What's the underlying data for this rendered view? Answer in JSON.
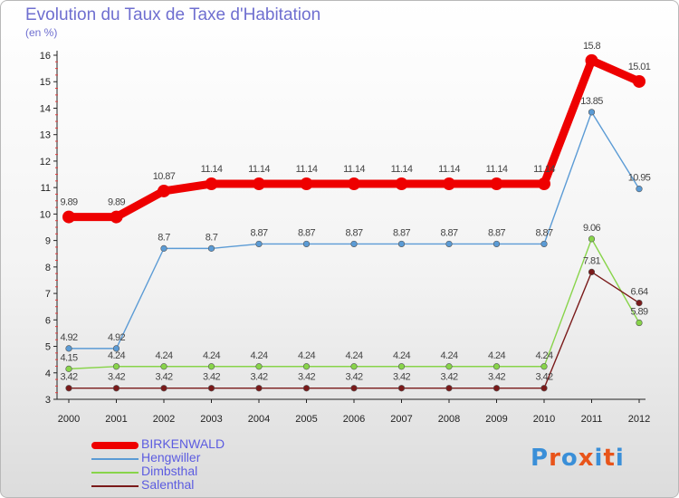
{
  "chart_data": {
    "type": "line",
    "title": "Evolution du Taux de Taxe d'Habitation",
    "subtitle": "(en %)",
    "xlabel": "",
    "ylabel": "",
    "ylim": [
      3,
      16
    ],
    "yticks": [
      "3",
      "4",
      "5",
      "6",
      "7",
      "8",
      "9",
      "10",
      "11",
      "12",
      "13",
      "14",
      "15",
      "16"
    ],
    "categories": [
      "2000",
      "2001",
      "2002",
      "2003",
      "2004",
      "2005",
      "2006",
      "2007",
      "2008",
      "2009",
      "2010",
      "2011",
      "2012"
    ],
    "series": [
      {
        "name": "BIRKENWALD",
        "color": "#ee0000",
        "emphasis": true,
        "values": [
          9.89,
          9.89,
          10.87,
          11.14,
          11.14,
          11.14,
          11.14,
          11.14,
          11.14,
          11.14,
          11.14,
          15.8,
          15.01
        ],
        "labels": [
          "9.89",
          "9.89",
          "10.87",
          "11.14",
          "11.14",
          "11.14",
          "11.14",
          "11.14",
          "11.14",
          "11.14",
          "11.14",
          "15.8",
          "15.01"
        ]
      },
      {
        "name": "Hengwiller",
        "color": "#5b9bd5",
        "emphasis": false,
        "values": [
          4.92,
          4.92,
          8.7,
          8.7,
          8.87,
          8.87,
          8.87,
          8.87,
          8.87,
          8.87,
          8.87,
          13.85,
          10.95
        ],
        "labels": [
          "4.92",
          "4.92",
          "8.7",
          "8.7",
          "8.87",
          "8.87",
          "8.87",
          "8.87",
          "8.87",
          "8.87",
          "8.87",
          "13.85",
          "10.95"
        ]
      },
      {
        "name": "Dimbsthal",
        "color": "#88d44a",
        "emphasis": false,
        "values": [
          4.15,
          4.24,
          4.24,
          4.24,
          4.24,
          4.24,
          4.24,
          4.24,
          4.24,
          4.24,
          4.24,
          9.06,
          5.89
        ],
        "labels": [
          "4.15",
          "4.24",
          "4.24",
          "4.24",
          "4.24",
          "4.24",
          "4.24",
          "4.24",
          "4.24",
          "4.24",
          "4.24",
          "9.06",
          "5.89"
        ]
      },
      {
        "name": "Salenthal",
        "color": "#7a1a1a",
        "emphasis": false,
        "values": [
          3.42,
          3.42,
          3.42,
          3.42,
          3.42,
          3.42,
          3.42,
          3.42,
          3.42,
          3.42,
          3.42,
          7.81,
          6.64
        ],
        "labels": [
          "3.42",
          "3.42",
          "3.42",
          "3.42",
          "3.42",
          "3.42",
          "3.42",
          "3.42",
          "3.42",
          "3.42",
          "3.42",
          "7.81",
          "6.64"
        ]
      }
    ],
    "legend_position": "bottom-left",
    "grid": false
  },
  "logo": {
    "text": "Proxiti",
    "colors": [
      "#3a8fd8",
      "#e8541a",
      "#3a8fd8",
      "#e8541a",
      "#3a8fd8",
      "#e8541a",
      "#3a8fd8"
    ]
  }
}
